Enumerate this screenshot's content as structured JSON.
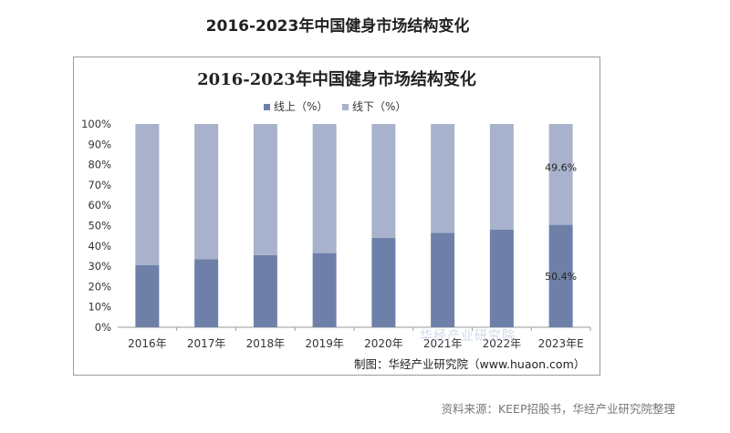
{
  "page": {
    "title": "2016-2023年中国健身市场结构变化",
    "source": "资料来源：KEEP招股书，华经产业研究院整理"
  },
  "chart_data": {
    "type": "bar",
    "stacked": true,
    "title": "2016-2023年中国健身市场结构变化",
    "categories": [
      "2016年",
      "2017年",
      "2018年",
      "2019年",
      "2020年",
      "2021年",
      "2022年",
      "2023年E"
    ],
    "series": [
      {
        "name": "线上（%）",
        "values": [
          30.5,
          33.5,
          35.5,
          36.5,
          44.0,
          46.5,
          48.0,
          50.4
        ],
        "color": "#6e80a8"
      },
      {
        "name": "线下（%）",
        "values": [
          69.5,
          66.5,
          64.5,
          63.5,
          56.0,
          53.5,
          52.0,
          49.6
        ],
        "color": "#a8b2cc"
      }
    ],
    "data_labels": [
      "50.4%",
      "49.6%"
    ],
    "y_ticks": [
      "0%",
      "10%",
      "20%",
      "30%",
      "40%",
      "50%",
      "60%",
      "70%",
      "80%",
      "90%",
      "100%"
    ],
    "ylim": [
      0,
      100
    ],
    "legend_position": "top",
    "grid": false,
    "credit": "制图：华经产业研究院（www.huaon.com）",
    "watermark": "华经产业研究院"
  }
}
